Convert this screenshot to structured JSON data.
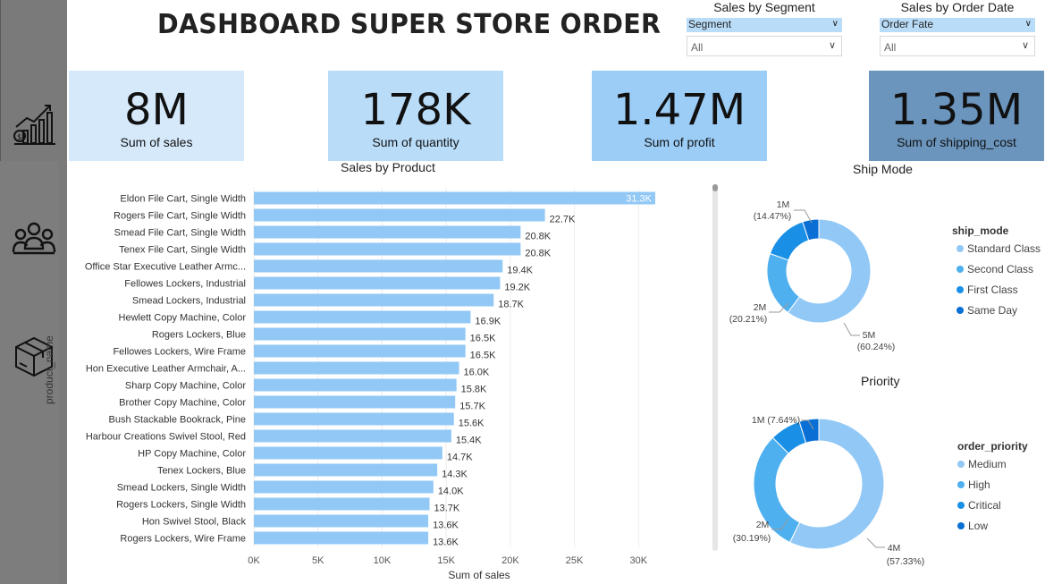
{
  "header": {
    "title": "DASHBOARD SUPER STORE ORDER"
  },
  "slicers": [
    {
      "title": "Sales by Segment",
      "field": "Segment",
      "value": "All"
    },
    {
      "title": "Sales by Order Date",
      "field": "Order Fate",
      "value": "All"
    }
  ],
  "kpis": [
    {
      "value": "8M",
      "label": "Sum of sales",
      "color": "#d6e9fb"
    },
    {
      "value": "178K",
      "label": "Sum of quantity",
      "color": "#b9dcf8"
    },
    {
      "value": "1.47M",
      "label": "Sum of profit",
      "color": "#9ccdf6"
    },
    {
      "value": "1.35M",
      "label": "Sum of shipping_cost",
      "color": "#6b95bd"
    }
  ],
  "sidebar": {
    "icons": [
      "sales-growth-icon",
      "people-group-icon",
      "box-package-icon"
    ]
  },
  "bar_chart": {
    "title": "Sales by Product",
    "xlabel": "Sum of sales",
    "ylabel": "product_name",
    "bar_color": "#92c8f6",
    "ticks": [
      "0K",
      "5K",
      "10K",
      "15K",
      "20K",
      "25K",
      "30K"
    ]
  },
  "ship_chart": {
    "title": "Ship Mode",
    "legend_title": "ship_mode",
    "labels": [
      {
        "line1": "1M",
        "line2": "(14.47%)"
      },
      {
        "line1": "2M",
        "line2": "(20.21%)"
      },
      {
        "line1": "5M",
        "line2": "(60.24%)"
      }
    ]
  },
  "priority_chart": {
    "title": "Priority",
    "legend_title": "order_priority",
    "labels": [
      {
        "line1": "1M (7.64%)",
        "line2": ""
      },
      {
        "line1": "2M",
        "line2": "(30.19%)"
      },
      {
        "line1": "4M",
        "line2": "(57.33%)"
      }
    ]
  },
  "chart_data": [
    {
      "type": "bar",
      "title": "Sales by Product",
      "xlabel": "Sum of sales",
      "ylabel": "product_name",
      "xlim": [
        0,
        32000
      ],
      "categories": [
        "Eldon File Cart, Single Width",
        "Rogers File Cart, Single Width",
        "Smead File Cart, Single Width",
        "Tenex File Cart, Single Width",
        "Office Star Executive Leather Armc...",
        "Fellowes Lockers, Industrial",
        "Smead Lockers, Industrial",
        "Hewlett Copy Machine, Color",
        "Rogers Lockers, Blue",
        "Fellowes Lockers, Wire Frame",
        "Hon Executive Leather Armchair, A...",
        "Sharp Copy Machine, Color",
        "Brother Copy Machine, Color",
        "Bush Stackable Bookrack, Pine",
        "Harbour Creations Swivel Stool, Red",
        "HP Copy Machine, Color",
        "Tenex Lockers, Blue",
        "Smead Lockers, Single Width",
        "Rogers Lockers, Single Width",
        "Hon Swivel Stool, Black",
        "Rogers Lockers, Wire Frame"
      ],
      "values": [
        31300,
        22700,
        20800,
        20800,
        19400,
        19200,
        18700,
        16900,
        16500,
        16500,
        16000,
        15800,
        15700,
        15600,
        15400,
        14700,
        14300,
        14000,
        13700,
        13600,
        13600
      ],
      "value_labels": [
        "31.3K",
        "22.7K",
        "20.8K",
        "20.8K",
        "19.4K",
        "19.2K",
        "18.7K",
        "16.9K",
        "16.5K",
        "16.5K",
        "16.0K",
        "15.8K",
        "15.7K",
        "15.6K",
        "15.4K",
        "14.7K",
        "14.3K",
        "14.0K",
        "13.7K",
        "13.6K",
        "13.6K"
      ]
    },
    {
      "type": "pie",
      "title": "Ship Mode",
      "legend_title": "ship_mode",
      "categories": [
        "Standard Class",
        "Second Class",
        "First Class",
        "Same Day"
      ],
      "values": [
        60.24,
        20.21,
        14.47,
        5.08
      ],
      "colors": [
        "#92c8f6",
        "#4fb0f0",
        "#1a8fe6",
        "#0a6fd4"
      ]
    },
    {
      "type": "pie",
      "title": "Priority",
      "legend_title": "order_priority",
      "categories": [
        "Medium",
        "High",
        "Critical",
        "Low"
      ],
      "values": [
        57.33,
        30.19,
        7.64,
        4.84
      ],
      "colors": [
        "#92c8f6",
        "#4fb0f0",
        "#1a8fe6",
        "#0a6fd4"
      ]
    }
  ]
}
